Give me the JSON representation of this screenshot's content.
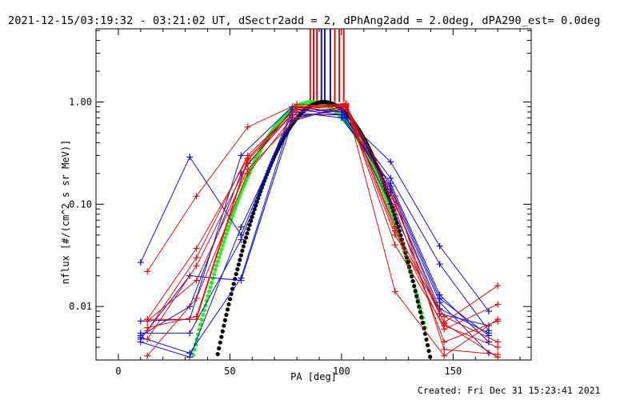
{
  "chart_data": {
    "type": "line",
    "title": "2021-12-15/03:19:32 - 03:21:02 UT, dSectr2add = 2, dPhAng2add = 2.0deg, dPA290_est=  0.0deg",
    "xlabel": "PA [deg]",
    "ylabel": "nflux [#/(cm^2 s sr MeV)]",
    "xlim": [
      -10,
      185
    ],
    "ylim": [
      0.003,
      5.2
    ],
    "yscale": "log",
    "xticks": [
      0,
      50,
      100,
      150
    ],
    "xtick_labels": [
      "0",
      "50",
      "100",
      "150"
    ],
    "yticks": [
      0.01,
      0.1,
      1.0
    ],
    "ytick_labels": [
      "0.01",
      "0.10",
      "1.00"
    ],
    "grid": false,
    "colors": {
      "red": "#dd1111",
      "blue": "#1111cc",
      "green": "#22ee22",
      "black": "#000000"
    },
    "vertical_markers": [
      {
        "x": 86,
        "color": "#dd1111"
      },
      {
        "x": 87.5,
        "color": "#dd1111"
      },
      {
        "x": 89,
        "color": "#dd1111"
      },
      {
        "x": 91,
        "color": "#1111cc"
      },
      {
        "x": 92.5,
        "color": "#1111cc"
      },
      {
        "x": 95,
        "color": "#1111cc"
      },
      {
        "x": 97,
        "color": "#dd1111"
      },
      {
        "x": 99,
        "color": "#dd1111"
      },
      {
        "x": 101,
        "color": "#dd1111"
      }
    ],
    "series": [
      {
        "color": "#1111cc",
        "marker": "plus",
        "x": [
          10,
          32,
          55,
          78,
          100,
          122,
          144,
          166
        ],
        "y": [
          0.027,
          0.29,
          0.05,
          0.85,
          0.75,
          0.26,
          0.039,
          0.009
        ]
      },
      {
        "color": "#1111cc",
        "marker": "plus",
        "x": [
          10,
          32,
          55,
          78,
          100,
          122,
          144,
          166
        ],
        "y": [
          0.0072,
          0.0075,
          0.3,
          0.9,
          0.8,
          0.18,
          0.026,
          0.0058
        ]
      },
      {
        "color": "#1111cc",
        "marker": "plus",
        "x": [
          10,
          32,
          55,
          78,
          100,
          122,
          144,
          166
        ],
        "y": [
          0.0055,
          0.0055,
          0.045,
          0.8,
          0.7,
          0.16,
          0.013,
          0.0045
        ]
      },
      {
        "color": "#1111cc",
        "marker": "plus",
        "x": [
          10,
          32,
          55,
          78,
          100,
          122,
          144,
          166
        ],
        "y": [
          0.005,
          0.0035,
          0.019,
          0.75,
          0.75,
          0.14,
          0.011,
          0.0035
        ]
      },
      {
        "color": "#1111cc",
        "marker": "plus",
        "x": [
          10,
          32,
          55,
          78,
          100,
          122,
          144,
          166
        ],
        "y": [
          0.0045,
          0.0032,
          0.06,
          0.7,
          0.85,
          0.13,
          0.0095,
          0.0055
        ]
      },
      {
        "color": "#1111cc",
        "marker": "plus",
        "x": [
          10,
          32,
          55,
          78,
          100,
          122,
          144,
          166
        ],
        "y": [
          0.0052,
          0.01,
          0.2,
          0.85,
          0.8,
          0.15,
          0.012,
          0.0052
        ]
      },
      {
        "color": "#1111cc",
        "marker": "plus",
        "x": [
          10,
          32,
          55,
          78,
          100,
          122,
          144,
          166
        ],
        "y": [
          0.0048,
          0.02,
          0.018,
          0.65,
          0.9,
          0.1,
          0.0085,
          0.0065
        ]
      },
      {
        "color": "#dd1111",
        "marker": "plus",
        "x": [
          13,
          35,
          58,
          80,
          102,
          124,
          146,
          170
        ],
        "y": [
          0.022,
          0.12,
          0.57,
          0.95,
          0.9,
          0.06,
          0.007,
          0.016
        ]
      },
      {
        "color": "#dd1111",
        "marker": "plus",
        "x": [
          13,
          35,
          58,
          80,
          102,
          124,
          146,
          170
        ],
        "y": [
          0.0075,
          0.037,
          0.28,
          0.9,
          0.95,
          0.055,
          0.006,
          0.0105
        ]
      },
      {
        "color": "#dd1111",
        "marker": "plus",
        "x": [
          13,
          35,
          58,
          80,
          102,
          124,
          146,
          170
        ],
        "y": [
          0.0058,
          0.03,
          0.3,
          0.88,
          0.97,
          0.014,
          0.0033,
          0.0075
        ]
      },
      {
        "color": "#dd1111",
        "marker": "plus",
        "x": [
          13,
          35,
          58,
          80,
          102,
          124,
          146,
          170
        ],
        "y": [
          0.0048,
          0.025,
          0.25,
          0.85,
          0.92,
          0.09,
          0.0045,
          0.0072
        ]
      },
      {
        "color": "#dd1111",
        "marker": "plus",
        "x": [
          13,
          35,
          58,
          80,
          102,
          124,
          146,
          170
        ],
        "y": [
          0.0033,
          0.012,
          0.2,
          0.8,
          0.88,
          0.05,
          0.008,
          0.0045
        ]
      },
      {
        "color": "#dd1111",
        "marker": "plus",
        "x": [
          13,
          35,
          58,
          80,
          102,
          124,
          146,
          170
        ],
        "y": [
          0.0062,
          0.008,
          0.28,
          0.9,
          0.9,
          0.04,
          0.0065,
          0.004
        ]
      },
      {
        "color": "#dd1111",
        "marker": "plus",
        "x": [
          13,
          35,
          58,
          80,
          102,
          124,
          146,
          170
        ],
        "y": [
          0.0075,
          0.0075,
          0.27,
          0.85,
          0.93,
          0.12,
          0.0038,
          0.0034
        ]
      },
      {
        "color": "#dd1111",
        "marker": "plus",
        "x": [
          13,
          35,
          58,
          80,
          102,
          124,
          146,
          170
        ],
        "y": [
          0.0072,
          0.018,
          0.22,
          0.7,
          0.85,
          0.1,
          0.0068,
          0.0032
        ]
      }
    ],
    "fit_curves": [
      {
        "color": "#22ee22",
        "dotted": true,
        "center": 87,
        "x_start": 33,
        "x_end": 137.5,
        "y_peak": 1.0,
        "y_at_start": 0.003
      },
      {
        "color": "#000000",
        "dotted": true,
        "center": 92,
        "x_start": 44,
        "x_end": 141,
        "y_peak": 1.0,
        "y_at_start": 0.003
      }
    ]
  },
  "footer": {
    "created": "Created: Fri Dec 31 15:23:41 2021"
  }
}
